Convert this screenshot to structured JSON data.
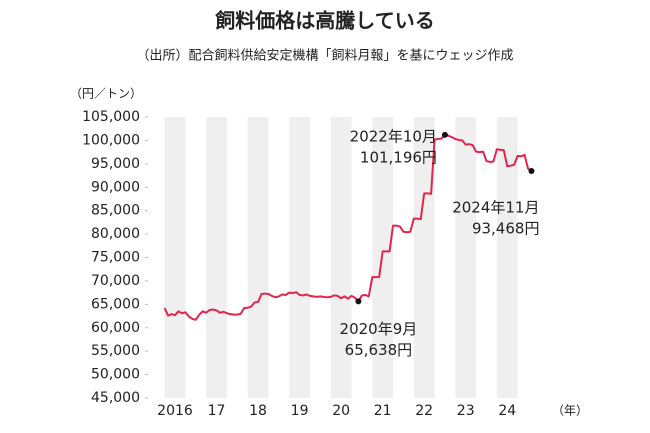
{
  "chart_data": {
    "type": "line",
    "title": "飼料価格は高騰している",
    "subtitle": "（出所）配合飼料供給安定機構「飼料月報」を基にウェッジ作成",
    "y_unit": "（円／トン）",
    "x_unit": "（年）",
    "xlim": [
      2015.6,
      2025.4
    ],
    "xticks": [
      2016,
      {
        "value": 2017,
        "label": "17"
      },
      {
        "value": 2018,
        "label": "18"
      },
      {
        "value": 2019,
        "label": "19"
      },
      {
        "value": 2020,
        "label": "20"
      },
      {
        "value": 2021,
        "label": "21"
      },
      {
        "value": 2022,
        "label": "22"
      },
      {
        "value": 2023,
        "label": "23"
      },
      {
        "value": 2024,
        "label": "24"
      }
    ],
    "ylim": [
      45000,
      105000
    ],
    "yticks": [
      {
        "value": 45000,
        "label": "45,000"
      },
      {
        "value": 50000,
        "label": "50,000"
      },
      {
        "value": 55000,
        "label": "55,000"
      },
      {
        "value": 60000,
        "label": "60,000"
      },
      {
        "value": 65000,
        "label": "65,000"
      },
      {
        "value": 70000,
        "label": "70,000"
      },
      {
        "value": 75000,
        "label": "75,000"
      },
      {
        "value": 80000,
        "label": "80,000"
      },
      {
        "value": 85000,
        "label": "85,000"
      },
      {
        "value": 90000,
        "label": "90,000"
      },
      {
        "value": 95000,
        "label": "95,000"
      },
      {
        "value": 100000,
        "label": "100,000"
      },
      {
        "value": 105000,
        "label": "105,000"
      }
    ],
    "x": [
      "2016-01",
      "2016-02",
      "2016-03",
      "2016-04",
      "2016-05",
      "2016-06",
      "2016-07",
      "2016-08",
      "2016-09",
      "2016-10",
      "2016-11",
      "2016-12",
      "2017-01",
      "2017-02",
      "2017-03",
      "2017-04",
      "2017-05",
      "2017-06",
      "2017-07",
      "2017-08",
      "2017-09",
      "2017-10",
      "2017-11",
      "2017-12",
      "2018-01",
      "2018-02",
      "2018-03",
      "2018-04",
      "2018-05",
      "2018-06",
      "2018-07",
      "2018-08",
      "2018-09",
      "2018-10",
      "2018-11",
      "2018-12",
      "2019-01",
      "2019-02",
      "2019-03",
      "2019-04",
      "2019-05",
      "2019-06",
      "2019-07",
      "2019-08",
      "2019-09",
      "2019-10",
      "2019-11",
      "2019-12",
      "2020-01",
      "2020-02",
      "2020-03",
      "2020-04",
      "2020-05",
      "2020-06",
      "2020-07",
      "2020-08",
      "2020-09",
      "2020-10",
      "2020-11",
      "2020-12",
      "2021-01",
      "2021-02",
      "2021-03",
      "2021-04",
      "2021-05",
      "2021-06",
      "2021-07",
      "2021-08",
      "2021-09",
      "2021-10",
      "2021-11",
      "2021-12",
      "2022-01",
      "2022-02",
      "2022-03",
      "2022-04",
      "2022-05",
      "2022-06",
      "2022-07",
      "2022-08",
      "2022-09",
      "2022-10",
      "2022-11",
      "2022-12",
      "2023-01",
      "2023-02",
      "2023-03",
      "2023-04",
      "2023-05",
      "2023-06",
      "2023-07",
      "2023-08",
      "2023-09",
      "2023-10",
      "2023-11",
      "2023-12",
      "2024-01",
      "2024-02",
      "2024-03",
      "2024-04",
      "2024-05",
      "2024-06",
      "2024-07",
      "2024-08",
      "2024-09",
      "2024-10",
      "2024-11"
    ],
    "series": [
      {
        "color": "#e3254b",
        "values": [
          64200,
          62600,
          62900,
          62700,
          63500,
          63100,
          63300,
          62400,
          61900,
          61700,
          62800,
          63500,
          63200,
          63800,
          63900,
          63700,
          63200,
          63400,
          63100,
          62900,
          62800,
          62800,
          63000,
          64200,
          64300,
          64500,
          65400,
          65500,
          67200,
          67300,
          67200,
          66800,
          66500,
          66700,
          67100,
          67000,
          67500,
          67400,
          67600,
          67000,
          66900,
          67100,
          66800,
          66700,
          66600,
          66700,
          66600,
          66500,
          66600,
          66900,
          66800,
          66300,
          66700,
          66200,
          66800,
          66400,
          65638,
          66900,
          67000,
          66700,
          70800,
          70800,
          70800,
          76300,
          76300,
          76300,
          81800,
          81800,
          81600,
          80500,
          80400,
          80500,
          83300,
          83300,
          83200,
          88700,
          88700,
          88600,
          100200,
          100300,
          100400,
          101196,
          101000,
          100700,
          100300,
          100100,
          100000,
          99100,
          99200,
          99000,
          97600,
          97500,
          97600,
          95600,
          95400,
          95500,
          98100,
          98000,
          97900,
          94500,
          94600,
          94800,
          96700,
          96600,
          96900,
          94000,
          93468
        ],
        "value_labels": [
          null,
          null,
          null,
          null,
          null,
          null,
          null,
          null,
          null,
          null,
          null,
          null,
          null,
          null,
          null,
          null,
          null,
          null,
          null,
          null,
          null,
          null,
          null,
          null,
          null,
          null,
          null,
          null,
          null,
          null,
          null,
          null,
          null,
          null,
          null,
          null,
          null,
          null,
          null,
          null,
          null,
          null,
          null,
          null,
          null,
          null,
          null,
          null,
          null,
          null,
          null,
          null,
          null,
          null,
          null,
          null,
          "65,638円",
          null,
          null,
          null,
          null,
          null,
          null,
          null,
          null,
          null,
          null,
          null,
          null,
          null,
          null,
          null,
          null,
          null,
          null,
          null,
          null,
          null,
          null,
          null,
          null,
          "101,196円",
          null,
          null,
          null,
          null,
          null,
          null,
          null,
          null,
          null,
          null,
          null,
          null,
          null,
          null,
          null,
          null,
          null,
          null,
          null,
          null,
          null,
          null,
          null,
          null,
          "93,468円"
        ]
      }
    ],
    "annotations": [
      {
        "x": "2020-09",
        "text": "2020年9月",
        "position": "below"
      },
      {
        "x": "2022-10",
        "text": "2022年10月",
        "position": "left"
      },
      {
        "x": "2024-11",
        "text": "2024年11月",
        "position": "below-left"
      }
    ]
  }
}
